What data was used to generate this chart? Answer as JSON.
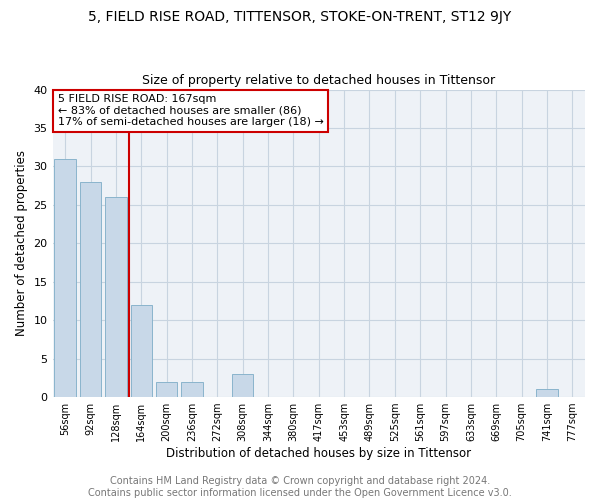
{
  "title": "5, FIELD RISE ROAD, TITTENSOR, STOKE-ON-TRENT, ST12 9JY",
  "subtitle": "Size of property relative to detached houses in Tittensor",
  "xlabel": "Distribution of detached houses by size in Tittensor",
  "ylabel": "Number of detached properties",
  "categories": [
    "56sqm",
    "92sqm",
    "128sqm",
    "164sqm",
    "200sqm",
    "236sqm",
    "272sqm",
    "308sqm",
    "344sqm",
    "380sqm",
    "417sqm",
    "453sqm",
    "489sqm",
    "525sqm",
    "561sqm",
    "597sqm",
    "633sqm",
    "669sqm",
    "705sqm",
    "741sqm",
    "777sqm"
  ],
  "values": [
    31,
    28,
    26,
    12,
    2,
    2,
    0,
    3,
    0,
    0,
    0,
    0,
    0,
    0,
    0,
    0,
    0,
    0,
    0,
    1,
    0
  ],
  "bar_color": "#c8d8e8",
  "bar_edge_color": "#8ab4cc",
  "grid_color": "#c8d4e0",
  "background_color": "#eef2f7",
  "vline_color": "#cc0000",
  "vline_xindex": 3,
  "annotation_text": "5 FIELD RISE ROAD: 167sqm\n← 83% of detached houses are smaller (86)\n17% of semi-detached houses are larger (18) →",
  "annotation_box_color": "#ffffff",
  "annotation_box_edge_color": "#cc0000",
  "footer": "Contains HM Land Registry data © Crown copyright and database right 2024.\nContains public sector information licensed under the Open Government Licence v3.0.",
  "ylim": [
    0,
    40
  ],
  "yticks": [
    0,
    5,
    10,
    15,
    20,
    25,
    30,
    35,
    40
  ],
  "title_fontsize": 10,
  "subtitle_fontsize": 9,
  "footer_fontsize": 7,
  "annotation_fontsize": 8
}
